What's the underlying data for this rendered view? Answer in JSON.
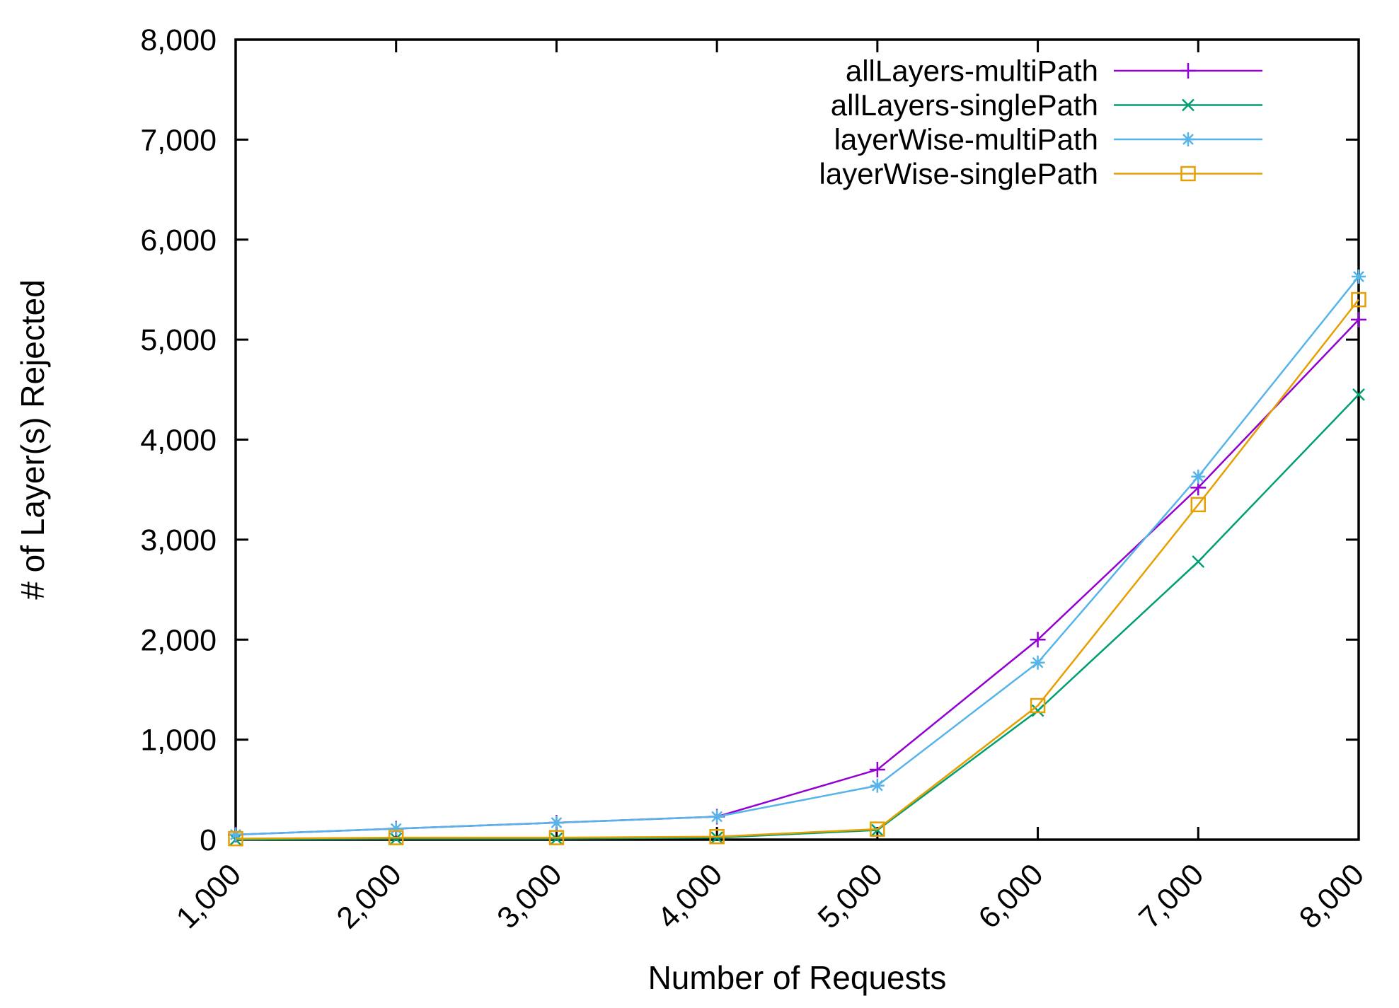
{
  "figure": {
    "background": "#ffffff",
    "axis_color": "#000000",
    "text_color": "#000000"
  },
  "chart_data": {
    "type": "line",
    "title": "",
    "xlabel": "Number of Requests",
    "ylabel": "# of Layer(s) Rejected",
    "xlim": [
      1000,
      8000
    ],
    "ylim": [
      0,
      8000
    ],
    "grid": false,
    "legend_position": "top-right-inside",
    "x": [
      1000,
      2000,
      3000,
      4000,
      5000,
      6000,
      7000,
      8000
    ],
    "xtick_labels": [
      "1,000",
      "2,000",
      "3,000",
      "4,000",
      "5,000",
      "6,000",
      "7,000",
      "8,000"
    ],
    "ytick_values": [
      0,
      1000,
      2000,
      3000,
      4000,
      5000,
      6000,
      7000,
      8000
    ],
    "ytick_labels": [
      "0",
      "1,000",
      "2,000",
      "3,000",
      "4,000",
      "5,000",
      "6,000",
      "7,000",
      "8,000"
    ],
    "series": [
      {
        "name": "allLayers-multiPath",
        "color": "#9400d3",
        "marker": "plus",
        "values": [
          50,
          110,
          170,
          230,
          700,
          2000,
          3520,
          5200
        ]
      },
      {
        "name": "allLayers-singlePath",
        "color": "#009e73",
        "marker": "cross",
        "values": [
          0,
          10,
          10,
          20,
          95,
          1290,
          2780,
          4450
        ]
      },
      {
        "name": "layerWise-multiPath",
        "color": "#56b4e9",
        "marker": "asterisk",
        "values": [
          50,
          110,
          170,
          230,
          540,
          1770,
          3630,
          5630
        ]
      },
      {
        "name": "layerWise-singlePath",
        "color": "#e69f00",
        "marker": "square",
        "values": [
          10,
          20,
          20,
          30,
          105,
          1340,
          3350,
          5400
        ]
      }
    ]
  }
}
